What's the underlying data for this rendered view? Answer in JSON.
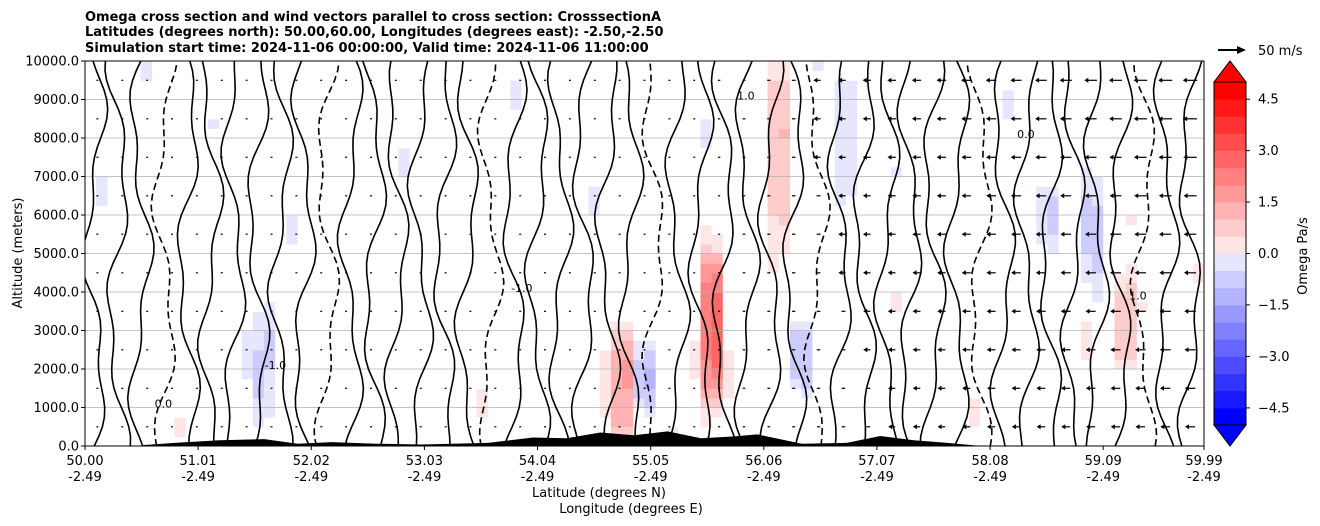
{
  "chart_data": {
    "type": "heatmap",
    "title": [
      "Omega cross section and wind vectors parallel to cross section: CrosssectionA",
      "Latitudes (degrees north): 50.00,60.00, Longitudes (degrees east): -2.50,-2.50",
      "Simulation start time: 2024-11-06 00:00:00, Valid time: 2024-11-06 11:00:00"
    ],
    "xlabel": [
      "Latitude (degrees N)",
      "Longitude (degrees E)"
    ],
    "ylabel": "Altitude (meters)",
    "xlim": [
      50.0,
      59.99
    ],
    "ylim": [
      0,
      10000
    ],
    "x_ticks": [
      {
        "lat": "50.00",
        "lon": "-2.49",
        "value": 50.0
      },
      {
        "lat": "51.01",
        "lon": "-2.49",
        "value": 51.01
      },
      {
        "lat": "52.02",
        "lon": "-2.49",
        "value": 52.02
      },
      {
        "lat": "53.03",
        "lon": "-2.49",
        "value": 53.03
      },
      {
        "lat": "54.04",
        "lon": "-2.49",
        "value": 54.04
      },
      {
        "lat": "55.05",
        "lon": "-2.49",
        "value": 55.05
      },
      {
        "lat": "56.06",
        "lon": "-2.49",
        "value": 56.06
      },
      {
        "lat": "57.07",
        "lon": "-2.49",
        "value": 57.07
      },
      {
        "lat": "58.08",
        "lon": "-2.49",
        "value": 58.08
      },
      {
        "lat": "59.09",
        "lon": "-2.49",
        "value": 59.09
      },
      {
        "lat": "59.99",
        "lon": "-2.49",
        "value": 59.99
      }
    ],
    "y_ticks": [
      {
        "label": "0.0",
        "value": 0
      },
      {
        "label": "1000.0",
        "value": 1000
      },
      {
        "label": "2000.0",
        "value": 2000
      },
      {
        "label": "3000.0",
        "value": 3000
      },
      {
        "label": "4000.0",
        "value": 4000
      },
      {
        "label": "5000.0",
        "value": 5000
      },
      {
        "label": "6000.0",
        "value": 6000
      },
      {
        "label": "7000.0",
        "value": 7000
      },
      {
        "label": "8000.0",
        "value": 8000
      },
      {
        "label": "9000.0",
        "value": 9000
      },
      {
        "label": "10000.0",
        "value": 10000
      }
    ],
    "grid": true,
    "colorbar": {
      "label": "Omega Pa/s",
      "range": [
        -5,
        5
      ],
      "ticks": [
        {
          "label": "4.5",
          "value": 4.5
        },
        {
          "label": "3.0",
          "value": 3.0
        },
        {
          "label": "1.5",
          "value": 1.5
        },
        {
          "label": "0.0",
          "value": 0.0
        },
        {
          "label": "−1.5",
          "value": -1.5
        },
        {
          "label": "−3.0",
          "value": -3.0
        },
        {
          "label": "−4.5",
          "value": -4.5
        }
      ],
      "colormap": "bwr",
      "extend": "both"
    },
    "quiver_key": {
      "label": "50 m/s",
      "speed": 50
    },
    "contour_lines": [
      {
        "label": "1.0",
        "lat": 55.9,
        "alt": 9000
      },
      {
        "label": "0.0",
        "lat": 58.4,
        "alt": 8000
      },
      {
        "label": "-1.0",
        "lat": 53.9,
        "alt": 4000
      },
      {
        "label": "1.0",
        "lat": 59.4,
        "alt": 3800
      },
      {
        "label": "-1.0",
        "lat": 51.7,
        "alt": 2000
      },
      {
        "label": "0.0",
        "lat": 50.7,
        "alt": 1000
      }
    ],
    "features": [
      {
        "type": "positive_core",
        "lat": 55.6,
        "alt_range": [
          1000,
          5000
        ],
        "omega_max": 3.5
      },
      {
        "type": "positive_core",
        "lat": 56.2,
        "alt_range": [
          5000,
          9800
        ],
        "omega_max": 1.5
      },
      {
        "type": "positive_core",
        "lat": 54.8,
        "alt_range": [
          200,
          3000
        ],
        "omega_max": 2.5
      },
      {
        "type": "positive_core",
        "lat": 59.3,
        "alt_range": [
          2000,
          4500
        ],
        "omega_max": 1.5
      },
      {
        "type": "negative_core",
        "lat": 56.4,
        "alt_range": [
          1500,
          3200
        ],
        "omega_min": -1.5
      },
      {
        "type": "negative_core",
        "lat": 55.0,
        "alt_range": [
          1000,
          2600
        ],
        "omega_min": -1.5
      },
      {
        "type": "negative_core",
        "lat": 56.8,
        "alt_range": [
          6500,
          9500
        ],
        "omega_min": -1.0
      },
      {
        "type": "negative_core",
        "lat": 59.0,
        "alt_range": [
          4000,
          7000
        ],
        "omega_min": -1.0
      },
      {
        "type": "negative_core",
        "lat": 58.6,
        "alt_range": [
          5200,
          6700
        ],
        "omega_min": -1.0
      },
      {
        "type": "negative_core",
        "lat": 51.6,
        "alt_range": [
          700,
          3500
        ],
        "omega_min": -1.0
      }
    ],
    "terrain": [
      {
        "lat": 50.5,
        "alt": 20
      },
      {
        "lat": 50.8,
        "alt": 80
      },
      {
        "lat": 51.2,
        "alt": 150
      },
      {
        "lat": 51.6,
        "alt": 180
      },
      {
        "lat": 51.9,
        "alt": 60
      },
      {
        "lat": 52.2,
        "alt": 100
      },
      {
        "lat": 52.6,
        "alt": 60
      },
      {
        "lat": 53.0,
        "alt": 40
      },
      {
        "lat": 53.6,
        "alt": 80
      },
      {
        "lat": 54.0,
        "alt": 220
      },
      {
        "lat": 54.3,
        "alt": 200
      },
      {
        "lat": 54.6,
        "alt": 350
      },
      {
        "lat": 54.9,
        "alt": 280
      },
      {
        "lat": 55.2,
        "alt": 380
      },
      {
        "lat": 55.5,
        "alt": 200
      },
      {
        "lat": 55.8,
        "alt": 250
      },
      {
        "lat": 56.0,
        "alt": 300
      },
      {
        "lat": 56.4,
        "alt": 60
      },
      {
        "lat": 56.8,
        "alt": 80
      },
      {
        "lat": 57.1,
        "alt": 260
      },
      {
        "lat": 57.4,
        "alt": 150
      },
      {
        "lat": 57.7,
        "alt": 80
      },
      {
        "lat": 58.0,
        "alt": 0
      }
    ]
  }
}
